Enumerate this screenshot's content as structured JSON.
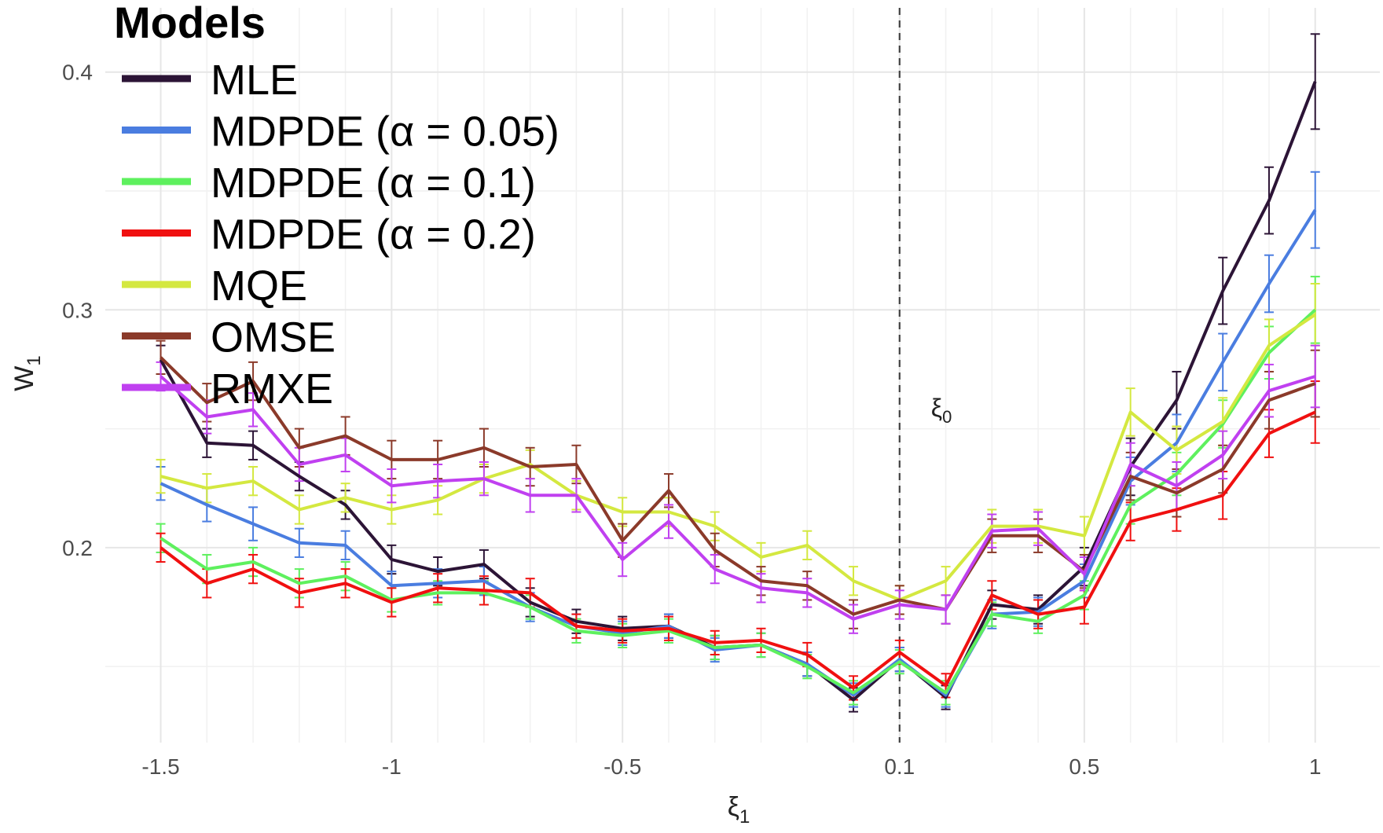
{
  "chart_data": {
    "type": "line",
    "xlabel": "ξ",
    "xlabel_sub": "1",
    "ylabel": "W",
    "ylabel_sub": "1",
    "xlim": [
      -1.62,
      1.14
    ],
    "ylim": [
      0.118,
      0.427
    ],
    "grid": true,
    "legend": {
      "title": "Models",
      "placement": "top-left"
    },
    "x_ticks": [
      {
        "value": -1.5,
        "label": "-1.5"
      },
      {
        "value": -1.0,
        "label": "-1"
      },
      {
        "value": -0.5,
        "label": "-0.5"
      },
      {
        "value": 0.1,
        "label": "0.1"
      },
      {
        "value": 0.5,
        "label": "0.5"
      },
      {
        "value": 1.0,
        "label": "1"
      }
    ],
    "y_ticks": [
      {
        "value": 0.2,
        "label": "0.2"
      },
      {
        "value": 0.3,
        "label": "0.3"
      },
      {
        "value": 0.4,
        "label": "0.4"
      }
    ],
    "reference_line": {
      "x": 0.1,
      "label": "ξ",
      "label_sub": "0"
    },
    "x": [
      -1.5,
      -1.4,
      -1.3,
      -1.2,
      -1.1,
      -1.0,
      -0.9,
      -0.8,
      -0.7,
      -0.6,
      -0.5,
      -0.4,
      -0.3,
      -0.2,
      -0.1,
      0.0,
      0.1,
      0.2,
      0.3,
      0.4,
      0.5,
      0.6,
      0.7,
      0.8,
      0.9,
      1.0
    ],
    "series": [
      {
        "name": "MLE",
        "color": "#2c1436",
        "values": [
          0.279,
          0.244,
          0.243,
          0.23,
          0.218,
          0.195,
          0.19,
          0.193,
          0.177,
          0.169,
          0.166,
          0.167,
          0.158,
          0.159,
          0.151,
          0.136,
          0.153,
          0.137,
          0.176,
          0.174,
          0.192,
          0.234,
          0.262,
          0.308,
          0.346,
          0.396
        ],
        "error": [
          0.006,
          0.006,
          0.006,
          0.006,
          0.006,
          0.006,
          0.006,
          0.006,
          0.006,
          0.005,
          0.005,
          0.005,
          0.005,
          0.005,
          0.005,
          0.005,
          0.005,
          0.005,
          0.006,
          0.006,
          0.008,
          0.012,
          0.012,
          0.014,
          0.014,
          0.02
        ]
      },
      {
        "name": "MDPDE (α = 0.05)",
        "color": "#4a7de0",
        "values": [
          0.227,
          0.218,
          0.21,
          0.202,
          0.201,
          0.184,
          0.185,
          0.186,
          0.175,
          0.167,
          0.164,
          0.167,
          0.157,
          0.159,
          0.151,
          0.138,
          0.153,
          0.138,
          0.172,
          0.173,
          0.186,
          0.228,
          0.244,
          0.278,
          0.311,
          0.342
        ],
        "error": [
          0.007,
          0.007,
          0.007,
          0.006,
          0.006,
          0.006,
          0.006,
          0.006,
          0.006,
          0.005,
          0.005,
          0.005,
          0.005,
          0.005,
          0.005,
          0.005,
          0.005,
          0.005,
          0.006,
          0.006,
          0.007,
          0.01,
          0.012,
          0.012,
          0.012,
          0.016
        ]
      },
      {
        "name": "MDPDE (α = 0.1)",
        "color": "#5ef05e",
        "values": [
          0.204,
          0.191,
          0.194,
          0.185,
          0.188,
          0.178,
          0.181,
          0.181,
          0.175,
          0.165,
          0.163,
          0.165,
          0.158,
          0.159,
          0.15,
          0.139,
          0.152,
          0.139,
          0.172,
          0.169,
          0.18,
          0.218,
          0.231,
          0.252,
          0.282,
          0.3
        ],
        "error": [
          0.006,
          0.006,
          0.006,
          0.006,
          0.006,
          0.005,
          0.005,
          0.005,
          0.005,
          0.005,
          0.005,
          0.005,
          0.005,
          0.005,
          0.005,
          0.005,
          0.005,
          0.005,
          0.005,
          0.005,
          0.006,
          0.008,
          0.009,
          0.01,
          0.011,
          0.014
        ]
      },
      {
        "name": "MDPDE (α = 0.2)",
        "color": "#f01010",
        "values": [
          0.2,
          0.185,
          0.191,
          0.181,
          0.185,
          0.177,
          0.183,
          0.182,
          0.181,
          0.167,
          0.165,
          0.166,
          0.16,
          0.161,
          0.155,
          0.141,
          0.156,
          0.142,
          0.18,
          0.172,
          0.175,
          0.211,
          0.216,
          0.222,
          0.248,
          0.257
        ],
        "error": [
          0.006,
          0.006,
          0.006,
          0.006,
          0.006,
          0.006,
          0.006,
          0.006,
          0.006,
          0.005,
          0.005,
          0.005,
          0.005,
          0.005,
          0.005,
          0.005,
          0.005,
          0.005,
          0.006,
          0.006,
          0.007,
          0.008,
          0.009,
          0.01,
          0.01,
          0.013
        ]
      },
      {
        "name": "MQE",
        "color": "#d4e840",
        "values": [
          0.23,
          0.225,
          0.228,
          0.216,
          0.221,
          0.216,
          0.22,
          0.229,
          0.235,
          0.222,
          0.215,
          0.215,
          0.209,
          0.196,
          0.201,
          0.186,
          0.178,
          0.186,
          0.209,
          0.209,
          0.205,
          0.257,
          0.241,
          0.253,
          0.285,
          0.298
        ],
        "error": [
          0.007,
          0.006,
          0.006,
          0.006,
          0.006,
          0.006,
          0.006,
          0.006,
          0.006,
          0.006,
          0.006,
          0.006,
          0.006,
          0.006,
          0.006,
          0.006,
          0.006,
          0.006,
          0.007,
          0.007,
          0.008,
          0.01,
          0.01,
          0.01,
          0.011,
          0.013
        ]
      },
      {
        "name": "OMSE",
        "color": "#8b3a2a",
        "values": [
          0.28,
          0.261,
          0.27,
          0.242,
          0.247,
          0.237,
          0.237,
          0.242,
          0.234,
          0.235,
          0.203,
          0.224,
          0.199,
          0.186,
          0.184,
          0.172,
          0.178,
          0.174,
          0.205,
          0.205,
          0.19,
          0.23,
          0.223,
          0.233,
          0.262,
          0.269
        ],
        "error": [
          0.007,
          0.008,
          0.008,
          0.008,
          0.008,
          0.008,
          0.008,
          0.008,
          0.008,
          0.008,
          0.007,
          0.007,
          0.007,
          0.006,
          0.006,
          0.006,
          0.006,
          0.006,
          0.007,
          0.007,
          0.007,
          0.01,
          0.01,
          0.01,
          0.012,
          0.014
        ]
      },
      {
        "name": "RMXE",
        "color": "#c040f0",
        "values": [
          0.272,
          0.255,
          0.258,
          0.235,
          0.239,
          0.226,
          0.228,
          0.229,
          0.222,
          0.222,
          0.195,
          0.211,
          0.191,
          0.183,
          0.181,
          0.17,
          0.176,
          0.174,
          0.207,
          0.208,
          0.189,
          0.235,
          0.226,
          0.239,
          0.266,
          0.272
        ],
        "error": [
          0.006,
          0.007,
          0.007,
          0.007,
          0.007,
          0.007,
          0.007,
          0.007,
          0.007,
          0.007,
          0.007,
          0.007,
          0.006,
          0.006,
          0.006,
          0.006,
          0.006,
          0.006,
          0.007,
          0.007,
          0.007,
          0.009,
          0.01,
          0.01,
          0.011,
          0.013
        ]
      }
    ]
  }
}
